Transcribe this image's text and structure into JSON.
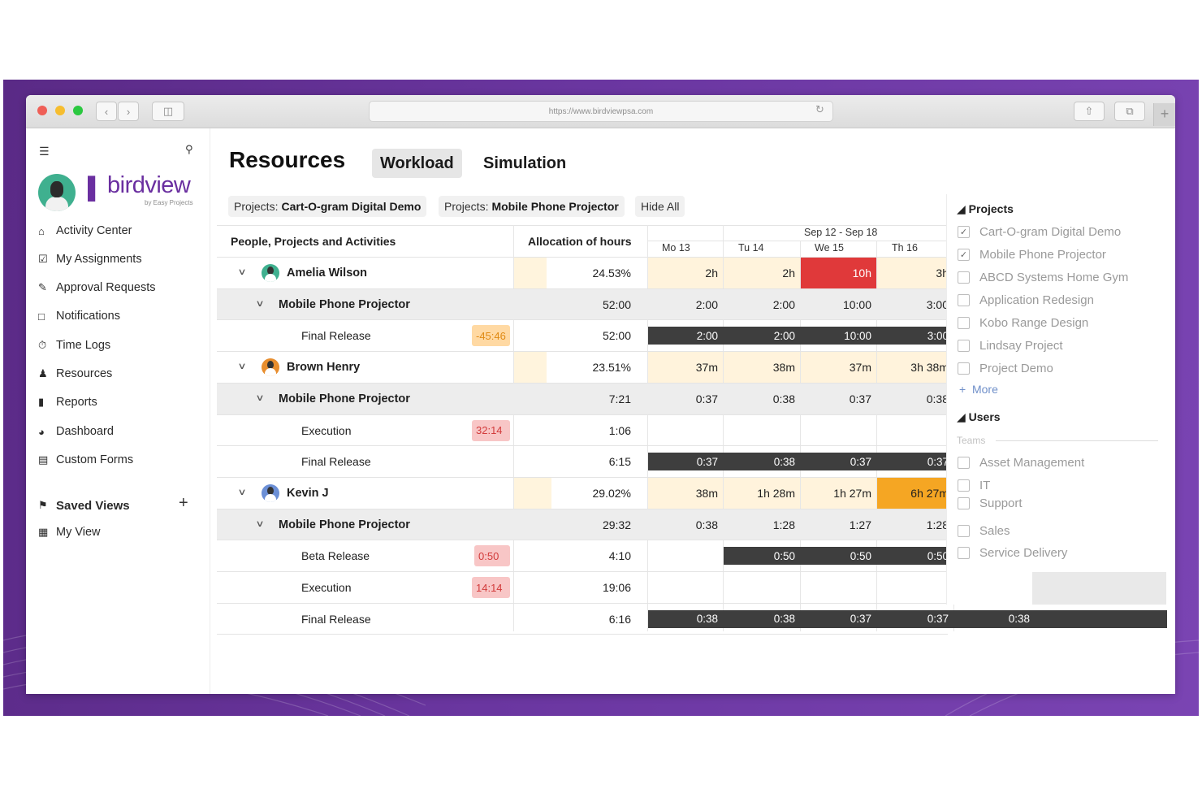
{
  "browser": {
    "url": "https://www.birdviewpsa.com"
  },
  "sidebar": {
    "brand": "birdview",
    "brand_sub": "by Easy Projects",
    "items": [
      {
        "label": "Activity Center",
        "icon": "home-icon"
      },
      {
        "label": "My Assignments",
        "icon": "checkbox-icon"
      },
      {
        "label": "Approval Requests",
        "icon": "chat-check-icon"
      },
      {
        "label": "Notifications",
        "icon": "chat-icon"
      },
      {
        "label": "Time Logs",
        "icon": "stopwatch-icon"
      },
      {
        "label": "Resources",
        "icon": "person-icon"
      },
      {
        "label": "Reports",
        "icon": "bar-chart-icon"
      },
      {
        "label": "Dashboard",
        "icon": "gauge-icon"
      },
      {
        "label": "Custom Forms",
        "icon": "forms-icon"
      }
    ],
    "saved_views_label": "Saved Views",
    "views": [
      {
        "label": "My View",
        "icon": "calendar-grid-icon"
      }
    ]
  },
  "header": {
    "title": "Resources",
    "tabs": [
      {
        "label": "Workload",
        "active": true
      },
      {
        "label": "Simulation",
        "active": false
      }
    ]
  },
  "filters": {
    "chips": [
      {
        "prefix": "Projects:",
        "value": "Cart-O-gram Digital Demo"
      },
      {
        "prefix": "Projects:",
        "value": "Mobile Phone Projector"
      }
    ],
    "hide_all": "Hide All"
  },
  "grid": {
    "col_people": "People, Projects and Activities",
    "col_alloc": "Allocation of hours",
    "week_range": "Sep 12 - Sep 18",
    "days": [
      "Mo 13",
      "Tu 14",
      "We 15",
      "Th 16"
    ],
    "rows": [
      {
        "type": "person",
        "name": "Amelia Wilson",
        "alloc": "24.53%",
        "days": [
          "2h",
          "2h",
          "10h",
          "3h"
        ]
      },
      {
        "type": "project",
        "name": "Mobile Phone Projector",
        "alloc": "52:00",
        "days": [
          "2:00",
          "2:00",
          "10:00",
          "3:00"
        ]
      },
      {
        "type": "activity",
        "name": "Final Release",
        "badge": "-45:46",
        "alloc": "52:00",
        "days": [
          "2:00",
          "2:00",
          "10:00",
          "3:00"
        ]
      },
      {
        "type": "person",
        "name": "Brown Henry",
        "alloc": "23.51%",
        "days": [
          "37m",
          "38m",
          "37m",
          "3h 38m"
        ]
      },
      {
        "type": "project",
        "name": "Mobile Phone Projector",
        "alloc": "7:21",
        "days": [
          "0:37",
          "0:38",
          "0:37",
          "0:38"
        ]
      },
      {
        "type": "activity",
        "name": "Execution",
        "badge": "32:14",
        "alloc": "1:06",
        "days": [
          "",
          "",
          "",
          ""
        ]
      },
      {
        "type": "activity",
        "name": "Final Release",
        "alloc": "6:15",
        "days": [
          "0:37",
          "0:38",
          "0:37",
          "0:37"
        ]
      },
      {
        "type": "person",
        "name": "Kevin J",
        "alloc": "29.02%",
        "days": [
          "38m",
          "1h 28m",
          "1h 27m",
          "6h 27m"
        ]
      },
      {
        "type": "project",
        "name": "Mobile Phone Projector",
        "alloc": "29:32",
        "days": [
          "0:38",
          "1:28",
          "1:27",
          "1:28"
        ]
      },
      {
        "type": "activity",
        "name": "Beta Release",
        "badge": "0:50",
        "alloc": "4:10",
        "days": [
          "",
          "0:50",
          "0:50",
          "0:50"
        ]
      },
      {
        "type": "activity",
        "name": "Execution",
        "badge": "14:14",
        "alloc": "19:06",
        "days": [
          "",
          "",
          "",
          ""
        ]
      },
      {
        "type": "activity",
        "name": "Final Release",
        "alloc": "6:16",
        "days": [
          "0:38",
          "0:38",
          "0:37",
          "0:37"
        ],
        "extra": "0:38"
      }
    ]
  },
  "panel": {
    "projects_label": "Projects",
    "projects": [
      {
        "label": "Cart-O-gram Digital Demo",
        "checked": true
      },
      {
        "label": "Mobile Phone Projector",
        "checked": true
      },
      {
        "label": "ABCD Systems Home Gym",
        "checked": false
      },
      {
        "label": "Application Redesign",
        "checked": false
      },
      {
        "label": "Kobo Range Design",
        "checked": false
      },
      {
        "label": "Lindsay Project",
        "checked": false
      },
      {
        "label": "Project Demo",
        "checked": false
      }
    ],
    "more": "More",
    "users_label": "Users",
    "teams_label": "Teams",
    "teams": [
      "Asset Management",
      "IT",
      "Support",
      "Sales",
      "Service Delivery"
    ]
  },
  "colors": {
    "brand": "#6a2fa0",
    "overload": "#e0393a",
    "warn": "#f5a623",
    "light_warn": "#fff3dc",
    "bar": "#3e3e3e"
  }
}
